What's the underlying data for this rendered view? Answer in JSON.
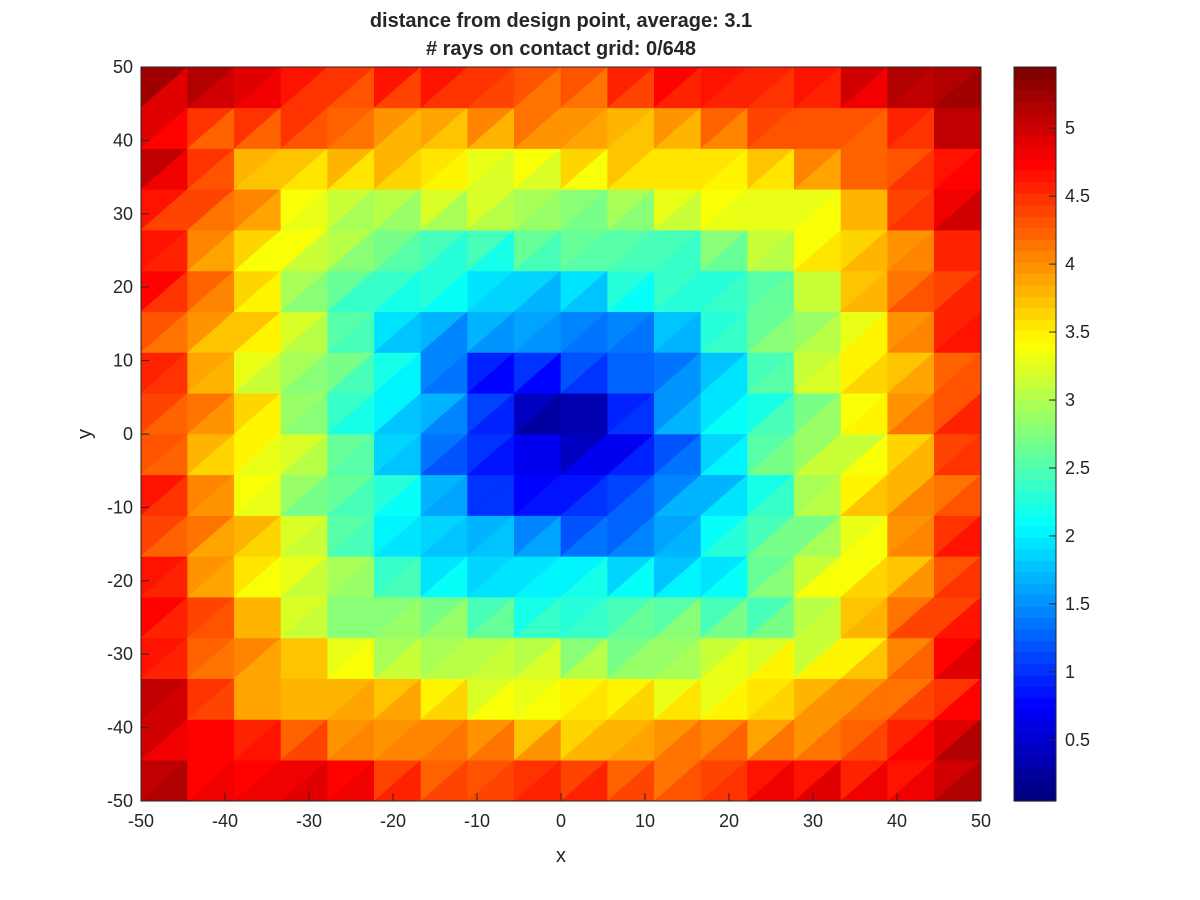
{
  "chart_data": {
    "type": "heatmap",
    "title": "distance from design point, average: 3.1",
    "subtitle": "# rays on contact grid: 0/648",
    "xlabel": "x",
    "ylabel": "y",
    "xlim": [
      -50,
      50
    ],
    "ylim": [
      -50,
      50
    ],
    "x_ticks": [
      "-50",
      "-40",
      "-30",
      "-20",
      "-10",
      "0",
      "10",
      "20",
      "30",
      "40",
      "50"
    ],
    "y_ticks": [
      "-50",
      "-40",
      "-30",
      "-20",
      "-10",
      "0",
      "10",
      "20",
      "30",
      "40",
      "50"
    ],
    "colorbar": {
      "colormap": "jet",
      "range": [
        0.05,
        5.45
      ],
      "ticks": [
        "0.5",
        "1",
        "1.5",
        "2",
        "2.5",
        "3",
        "3.5",
        "4",
        "4.5",
        "5"
      ]
    },
    "grid": "18x18 cells, each split diagonally into two triangles",
    "estimated_corner_values": {
      "center": 0.1,
      "top_left": 5.4,
      "top_right": 5.2,
      "bottom_left": 5.2,
      "bottom_right": 5.4
    }
  }
}
